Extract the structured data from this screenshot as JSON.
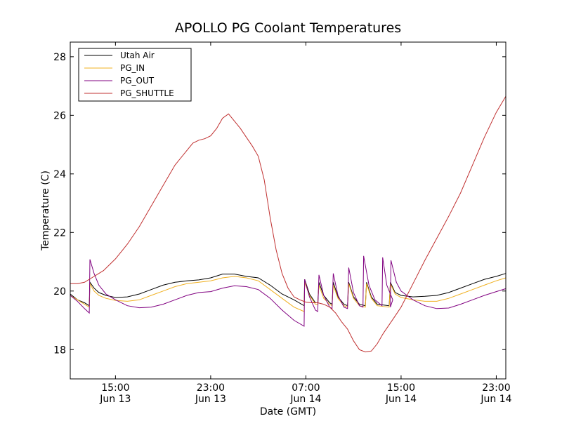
{
  "chart_data": {
    "type": "line",
    "title": "APOLLO PG Coolant Temperatures",
    "xlabel": "Date (GMT)",
    "ylabel": "Temperature (C)",
    "x_unit": "hours since Jun 13 00:00 GMT",
    "xlim": [
      11.2,
      47.8
    ],
    "ylim": [
      17,
      28.5
    ],
    "yticks": [
      18,
      20,
      22,
      24,
      26,
      28
    ],
    "xticks": [
      {
        "x": 15,
        "time": "15:00",
        "date": "Jun 13"
      },
      {
        "x": 23,
        "time": "23:00",
        "date": "Jun 13"
      },
      {
        "x": 31,
        "time": "07:00",
        "date": "Jun 14"
      },
      {
        "x": 39,
        "time": "15:00",
        "date": "Jun 14"
      },
      {
        "x": 47,
        "time": "23:00",
        "date": "Jun 14"
      }
    ],
    "legend_position": "top-left",
    "grid": false,
    "series": [
      {
        "name": "Utah Air",
        "color": "#000000",
        "points": [
          [
            11.2,
            19.9
          ],
          [
            11.8,
            19.7
          ],
          [
            12.4,
            19.6
          ],
          [
            12.8,
            19.5
          ],
          [
            12.85,
            20.3
          ],
          [
            13.2,
            20.1
          ],
          [
            13.6,
            19.95
          ],
          [
            14.2,
            19.85
          ],
          [
            15,
            19.78
          ],
          [
            16,
            19.8
          ],
          [
            17,
            19.9
          ],
          [
            18,
            20.05
          ],
          [
            19,
            20.2
          ],
          [
            20,
            20.3
          ],
          [
            21,
            20.35
          ],
          [
            22,
            20.38
          ],
          [
            23,
            20.45
          ],
          [
            24,
            20.58
          ],
          [
            25,
            20.58
          ],
          [
            26,
            20.5
          ],
          [
            27,
            20.45
          ],
          [
            28,
            20.2
          ],
          [
            29,
            19.9
          ],
          [
            30,
            19.7
          ],
          [
            30.85,
            19.5
          ],
          [
            30.9,
            20.4
          ],
          [
            31.3,
            19.9
          ],
          [
            31.8,
            19.6
          ],
          [
            32,
            19.6
          ],
          [
            32.1,
            20.3
          ],
          [
            32.5,
            19.85
          ],
          [
            33,
            19.6
          ],
          [
            33.2,
            19.55
          ],
          [
            33.3,
            20.3
          ],
          [
            33.7,
            19.8
          ],
          [
            34.2,
            19.55
          ],
          [
            34.5,
            19.5
          ],
          [
            34.6,
            20.3
          ],
          [
            35,
            19.8
          ],
          [
            35.5,
            19.55
          ],
          [
            36,
            19.5
          ],
          [
            36.1,
            20.3
          ],
          [
            36.5,
            19.8
          ],
          [
            37,
            19.55
          ],
          [
            38,
            19.5
          ],
          [
            38.1,
            20.3
          ],
          [
            38.5,
            19.95
          ],
          [
            39,
            19.85
          ],
          [
            40,
            19.8
          ],
          [
            41,
            19.82
          ],
          [
            42,
            19.85
          ],
          [
            43,
            19.95
          ],
          [
            44,
            20.1
          ],
          [
            45,
            20.25
          ],
          [
            46,
            20.4
          ],
          [
            47,
            20.5
          ],
          [
            47.8,
            20.6
          ]
        ]
      },
      {
        "name": "PG_IN",
        "color": "#f0b020",
        "points": [
          [
            11.2,
            19.85
          ],
          [
            11.8,
            19.7
          ],
          [
            12.4,
            19.55
          ],
          [
            12.8,
            19.45
          ],
          [
            12.85,
            20.25
          ],
          [
            13.2,
            20.0
          ],
          [
            13.6,
            19.85
          ],
          [
            14.2,
            19.75
          ],
          [
            15,
            19.68
          ],
          [
            16,
            19.65
          ],
          [
            17,
            19.7
          ],
          [
            18,
            19.85
          ],
          [
            19,
            20.0
          ],
          [
            20,
            20.15
          ],
          [
            21,
            20.25
          ],
          [
            22,
            20.3
          ],
          [
            23,
            20.35
          ],
          [
            24,
            20.45
          ],
          [
            25,
            20.5
          ],
          [
            26,
            20.45
          ],
          [
            27,
            20.35
          ],
          [
            28,
            20.05
          ],
          [
            29,
            19.75
          ],
          [
            30,
            19.45
          ],
          [
            30.85,
            19.3
          ],
          [
            30.9,
            20.3
          ],
          [
            31.3,
            19.85
          ],
          [
            31.8,
            19.55
          ],
          [
            32,
            19.55
          ],
          [
            32.1,
            20.2
          ],
          [
            32.5,
            19.75
          ],
          [
            33,
            19.55
          ],
          [
            33.2,
            19.5
          ],
          [
            33.3,
            20.2
          ],
          [
            33.7,
            19.75
          ],
          [
            34.2,
            19.5
          ],
          [
            34.5,
            19.45
          ],
          [
            34.6,
            20.25
          ],
          [
            35,
            19.75
          ],
          [
            35.5,
            19.5
          ],
          [
            36,
            19.45
          ],
          [
            36.1,
            20.25
          ],
          [
            36.5,
            19.75
          ],
          [
            37,
            19.5
          ],
          [
            38,
            19.45
          ],
          [
            38.1,
            20.25
          ],
          [
            38.5,
            19.9
          ],
          [
            39,
            19.78
          ],
          [
            40,
            19.7
          ],
          [
            41,
            19.65
          ],
          [
            42,
            19.65
          ],
          [
            43,
            19.75
          ],
          [
            44,
            19.9
          ],
          [
            45,
            20.05
          ],
          [
            46,
            20.2
          ],
          [
            47,
            20.35
          ],
          [
            47.8,
            20.45
          ]
        ]
      },
      {
        "name": "PG_OUT",
        "color": "#800080",
        "points": [
          [
            11.2,
            19.85
          ],
          [
            11.8,
            19.65
          ],
          [
            12.4,
            19.4
          ],
          [
            12.8,
            19.25
          ],
          [
            12.85,
            21.08
          ],
          [
            13.2,
            20.6
          ],
          [
            13.6,
            20.2
          ],
          [
            14.2,
            19.9
          ],
          [
            15,
            19.7
          ],
          [
            16,
            19.5
          ],
          [
            17,
            19.43
          ],
          [
            18,
            19.45
          ],
          [
            19,
            19.55
          ],
          [
            20,
            19.7
          ],
          [
            21,
            19.85
          ],
          [
            22,
            19.95
          ],
          [
            23,
            19.98
          ],
          [
            24,
            20.1
          ],
          [
            25,
            20.18
          ],
          [
            26,
            20.15
          ],
          [
            27,
            20.05
          ],
          [
            28,
            19.75
          ],
          [
            29,
            19.35
          ],
          [
            30,
            19.0
          ],
          [
            30.85,
            18.8
          ],
          [
            30.9,
            20.4
          ],
          [
            31.3,
            19.8
          ],
          [
            31.8,
            19.35
          ],
          [
            32,
            19.3
          ],
          [
            32.1,
            20.55
          ],
          [
            32.5,
            19.85
          ],
          [
            33,
            19.45
          ],
          [
            33.2,
            19.4
          ],
          [
            33.3,
            20.6
          ],
          [
            33.7,
            19.85
          ],
          [
            34.2,
            19.45
          ],
          [
            34.5,
            19.4
          ],
          [
            34.6,
            20.8
          ],
          [
            35,
            19.95
          ],
          [
            35.5,
            19.5
          ],
          [
            35.8,
            19.45
          ],
          [
            35.85,
            21.2
          ],
          [
            36.3,
            20.2
          ],
          [
            36.8,
            19.7
          ],
          [
            37.4,
            19.5
          ],
          [
            37.45,
            21.15
          ],
          [
            37.8,
            20.2
          ],
          [
            38.3,
            19.7
          ],
          [
            38.1,
            19.45
          ],
          [
            38.15,
            21.05
          ],
          [
            38.6,
            20.3
          ],
          [
            39,
            20.0
          ],
          [
            40,
            19.7
          ],
          [
            41,
            19.5
          ],
          [
            42,
            19.4
          ],
          [
            43,
            19.42
          ],
          [
            44,
            19.55
          ],
          [
            45,
            19.7
          ],
          [
            46,
            19.85
          ],
          [
            47,
            19.98
          ],
          [
            47.8,
            20.08
          ]
        ]
      },
      {
        "name": "PG_SHUTTLE",
        "color": "#c03030",
        "points": [
          [
            11.2,
            20.25
          ],
          [
            11.8,
            20.25
          ],
          [
            12.4,
            20.3
          ],
          [
            13,
            20.45
          ],
          [
            14,
            20.7
          ],
          [
            15,
            21.1
          ],
          [
            16,
            21.6
          ],
          [
            17,
            22.2
          ],
          [
            18,
            22.9
          ],
          [
            19,
            23.6
          ],
          [
            20,
            24.3
          ],
          [
            21,
            24.8
          ],
          [
            21.5,
            25.05
          ],
          [
            22,
            25.15
          ],
          [
            22.5,
            25.2
          ],
          [
            23,
            25.3
          ],
          [
            23.5,
            25.55
          ],
          [
            24,
            25.9
          ],
          [
            24.5,
            26.05
          ],
          [
            25,
            25.8
          ],
          [
            25.5,
            25.55
          ],
          [
            26,
            25.25
          ],
          [
            26.5,
            24.95
          ],
          [
            27,
            24.6
          ],
          [
            27.5,
            23.8
          ],
          [
            28,
            22.5
          ],
          [
            28.5,
            21.4
          ],
          [
            29,
            20.6
          ],
          [
            29.5,
            20.1
          ],
          [
            30,
            19.8
          ],
          [
            30.5,
            19.7
          ],
          [
            31,
            19.62
          ],
          [
            31.5,
            19.6
          ],
          [
            32,
            19.6
          ],
          [
            32.5,
            19.55
          ],
          [
            33,
            19.45
          ],
          [
            33.5,
            19.25
          ],
          [
            34,
            18.95
          ],
          [
            34.5,
            18.7
          ],
          [
            35,
            18.3
          ],
          [
            35.5,
            18.0
          ],
          [
            36,
            17.92
          ],
          [
            36.5,
            17.95
          ],
          [
            37,
            18.2
          ],
          [
            37.5,
            18.55
          ],
          [
            38,
            18.85
          ],
          [
            38.5,
            19.15
          ],
          [
            39,
            19.45
          ],
          [
            39.5,
            19.85
          ],
          [
            40,
            20.25
          ],
          [
            41,
            21.05
          ],
          [
            42,
            21.8
          ],
          [
            43,
            22.55
          ],
          [
            44,
            23.35
          ],
          [
            45,
            24.3
          ],
          [
            46,
            25.25
          ],
          [
            47,
            26.1
          ],
          [
            47.8,
            26.65
          ]
        ]
      }
    ]
  }
}
